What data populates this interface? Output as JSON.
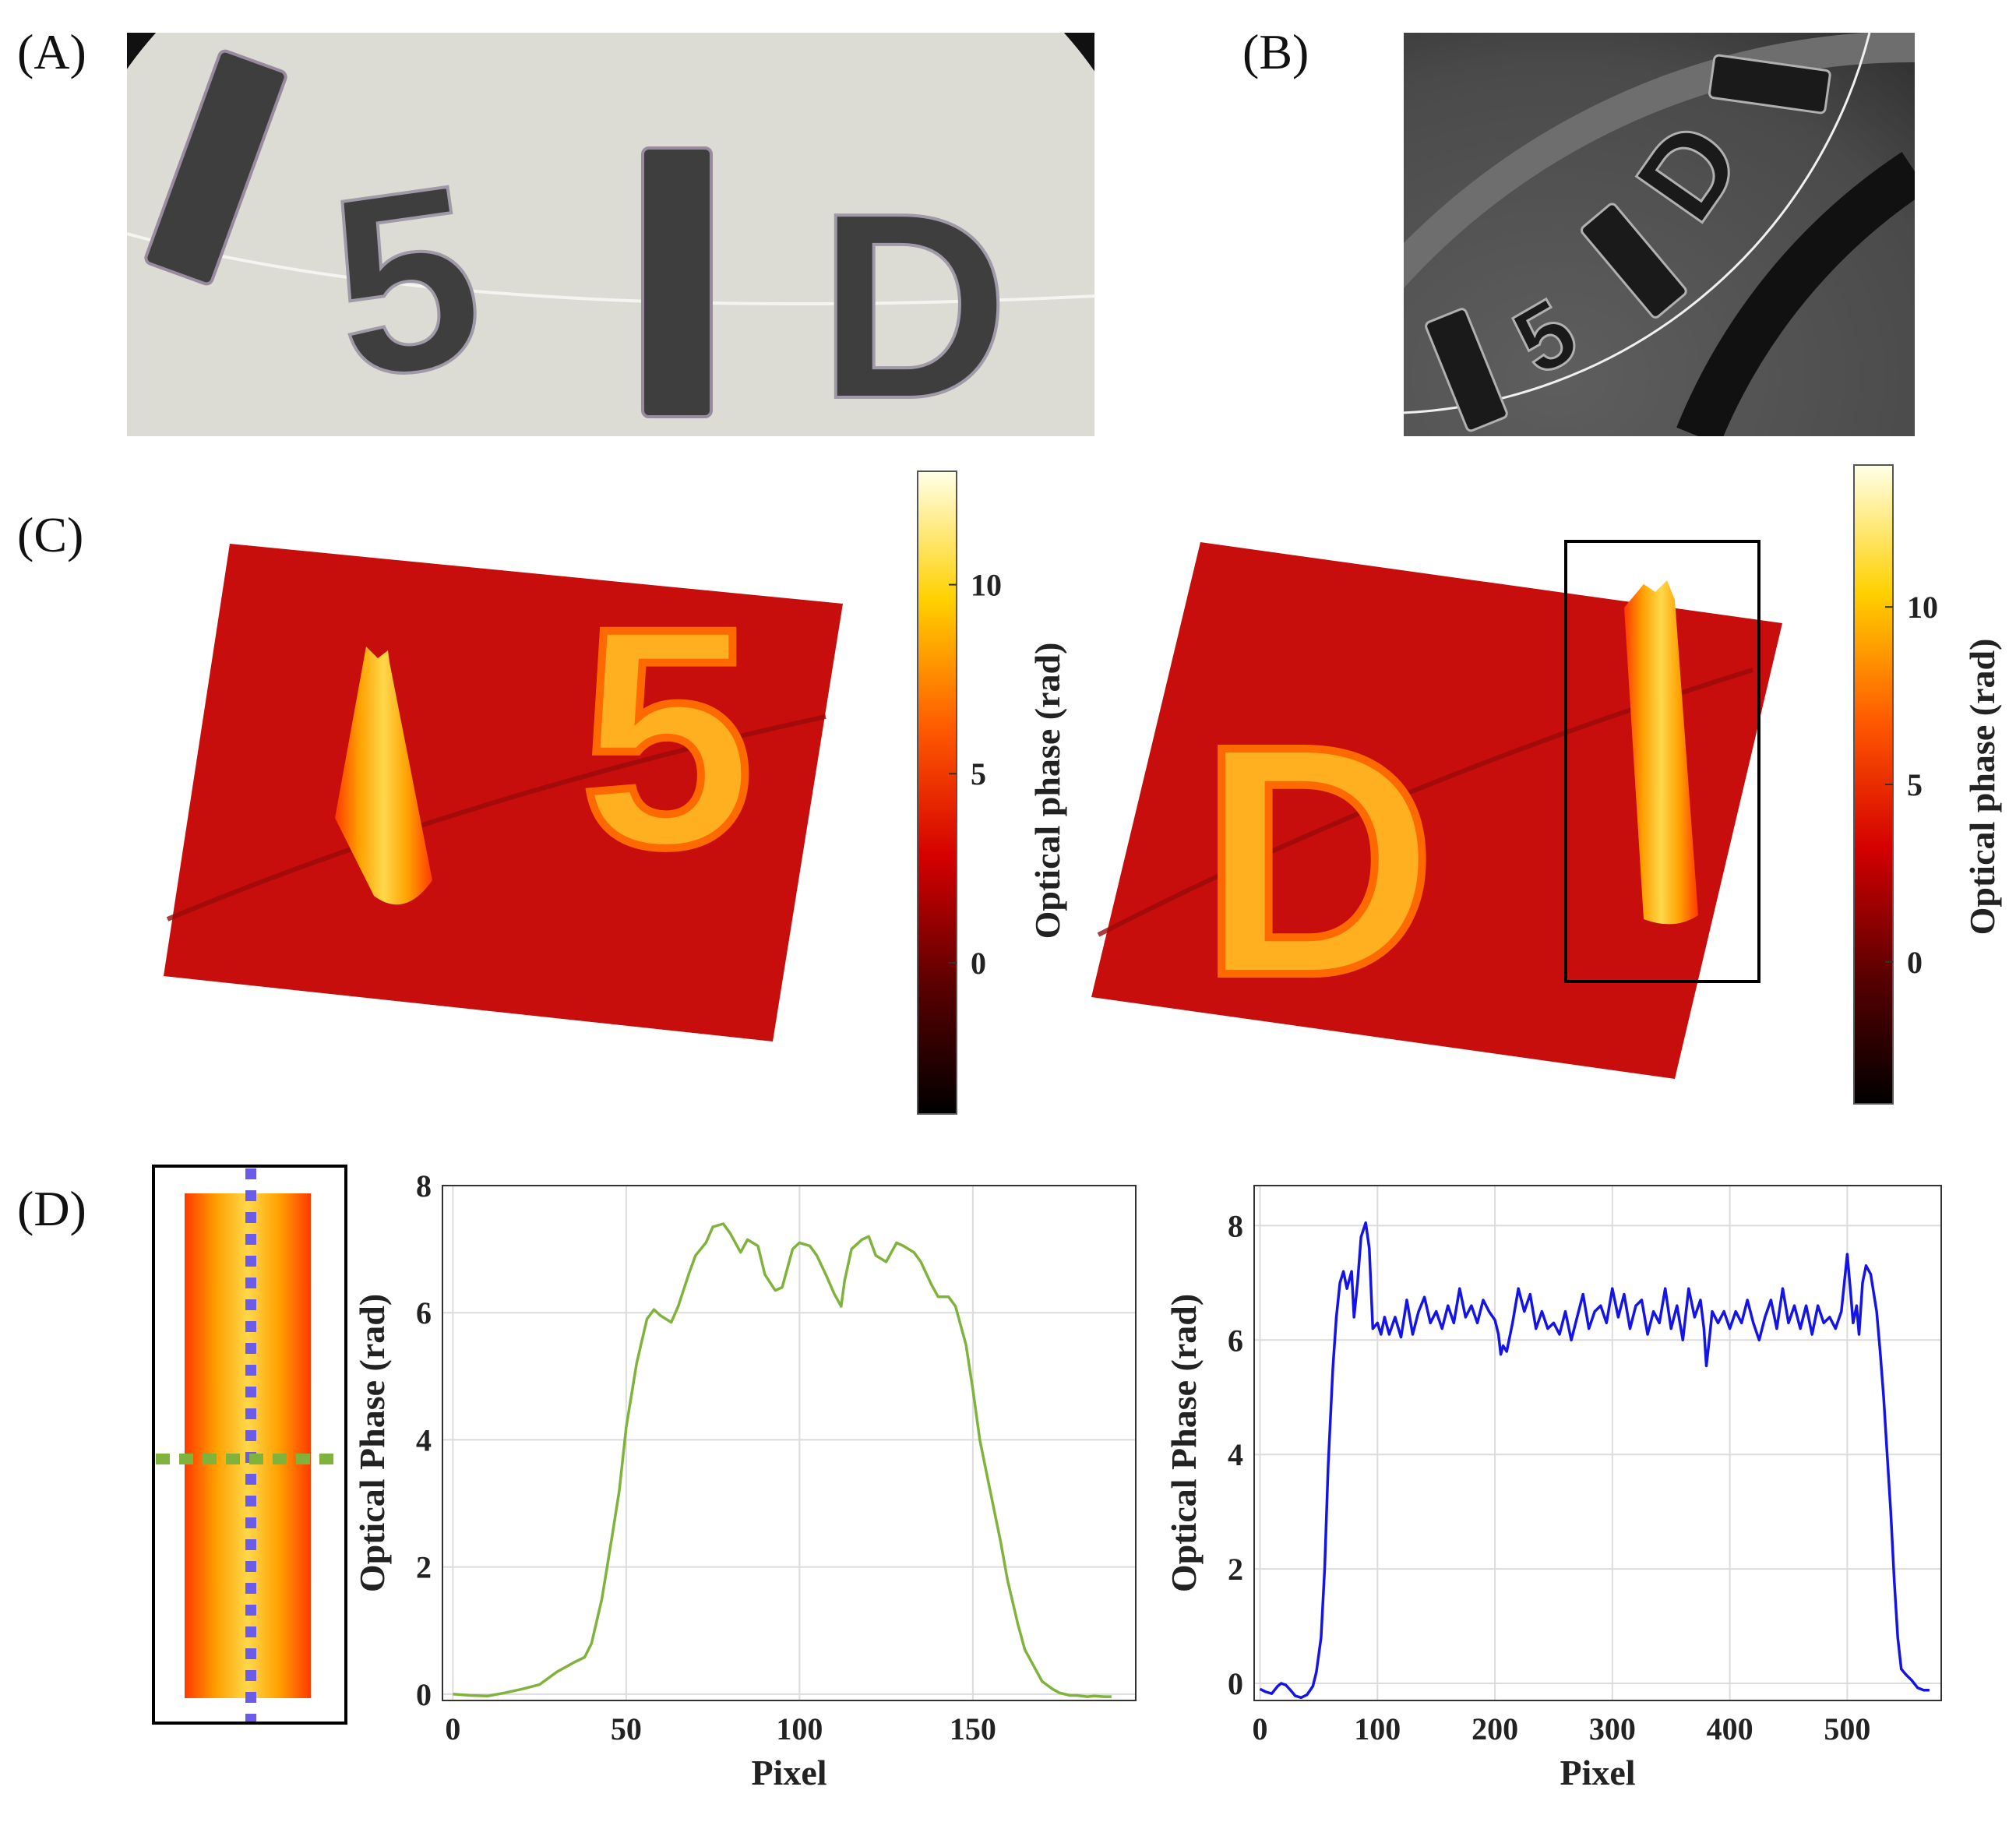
{
  "panels": {
    "a": {
      "label": "(A)",
      "text": [
        "I",
        "5",
        "I",
        "D"
      ]
    },
    "b": {
      "label": "(B)",
      "text": [
        "I",
        "5",
        "I",
        "D",
        "I"
      ]
    },
    "c": {
      "label": "(C)",
      "left_surface_text": [
        "I",
        "5"
      ],
      "right_surface_text": [
        "D",
        "I"
      ],
      "colorbar_left": {
        "label": "Optical phase (rad)",
        "ticks": [
          "10",
          "5",
          "0"
        ],
        "tick_values": [
          10,
          5,
          0
        ],
        "range": [
          -4,
          13
        ]
      },
      "colorbar_right": {
        "label": "Optical phase (rad)",
        "ticks": [
          "10",
          "5",
          "0"
        ],
        "tick_values": [
          10,
          5,
          0
        ],
        "range": [
          -4,
          14
        ]
      }
    },
    "d": {
      "label": "(D)"
    }
  },
  "colors": {
    "green_line": "#7fb33c",
    "blue_line": "#1414e6",
    "blue_dots": "#6a5ce8",
    "green_dots": "#7fb33c"
  },
  "chart_data": [
    {
      "type": "line",
      "title": "",
      "xlabel": "Pixel",
      "ylabel": "Optical Phase (rad)",
      "xlim": [
        -3,
        197
      ],
      "ylim": [
        -0.1,
        8
      ],
      "xticks": [
        0,
        50,
        100,
        150
      ],
      "yticks": [
        0,
        2,
        4,
        6,
        8
      ],
      "grid": true,
      "series": [
        {
          "name": "green",
          "color": "#7fb33c",
          "x": [
            0,
            5,
            10,
            15,
            20,
            25,
            30,
            35,
            38,
            40,
            43,
            46,
            48,
            50,
            53,
            56,
            58,
            60,
            63,
            65,
            68,
            70,
            73,
            75,
            78,
            80,
            83,
            85,
            88,
            90,
            93,
            95,
            98,
            100,
            103,
            105,
            108,
            110,
            112,
            113,
            115,
            118,
            120,
            122,
            125,
            128,
            130,
            133,
            135,
            138,
            140,
            143,
            145,
            148,
            150,
            152,
            155,
            158,
            160,
            163,
            165,
            168,
            170,
            173,
            175,
            178,
            180,
            183,
            185,
            188,
            190
          ],
          "y": [
            0,
            -0.02,
            -0.03,
            0.02,
            0.08,
            0.15,
            0.35,
            0.5,
            0.58,
            0.8,
            1.5,
            2.5,
            3.2,
            4.2,
            5.2,
            5.9,
            6.05,
            5.95,
            5.85,
            6.1,
            6.6,
            6.9,
            7.1,
            7.35,
            7.4,
            7.25,
            6.95,
            7.15,
            7.05,
            6.6,
            6.35,
            6.4,
            7.0,
            7.1,
            7.05,
            6.9,
            6.55,
            6.3,
            6.1,
            6.5,
            7.0,
            7.15,
            7.2,
            6.9,
            6.8,
            7.1,
            7.05,
            6.95,
            6.8,
            6.45,
            6.25,
            6.25,
            6.1,
            5.5,
            4.8,
            4.0,
            3.2,
            2.4,
            1.8,
            1.1,
            0.7,
            0.4,
            0.2,
            0.08,
            0.02,
            -0.02,
            -0.02,
            -0.04,
            -0.03,
            -0.04,
            -0.04
          ]
        }
      ]
    },
    {
      "type": "line",
      "title": "",
      "xlabel": "Pixel",
      "ylabel": "Optical Phase (rad)",
      "xlim": [
        -5,
        580
      ],
      "ylim": [
        -0.3,
        8.7
      ],
      "xticks": [
        0,
        100,
        200,
        300,
        400,
        500
      ],
      "yticks": [
        0,
        2,
        4,
        6,
        8
      ],
      "grid": true,
      "series": [
        {
          "name": "blue",
          "color": "#1414e6",
          "x": [
            0,
            5,
            10,
            15,
            18,
            22,
            26,
            30,
            35,
            40,
            45,
            48,
            52,
            55,
            58,
            62,
            65,
            68,
            71,
            74,
            78,
            80,
            83,
            86,
            90,
            93,
            96,
            100,
            103,
            106,
            110,
            115,
            120,
            125,
            130,
            135,
            140,
            145,
            150,
            155,
            160,
            165,
            170,
            175,
            180,
            185,
            190,
            195,
            200,
            203,
            205,
            207,
            210,
            215,
            220,
            225,
            230,
            235,
            240,
            245,
            250,
            255,
            260,
            265,
            270,
            275,
            280,
            285,
            290,
            295,
            300,
            305,
            310,
            315,
            320,
            325,
            330,
            335,
            340,
            345,
            350,
            355,
            360,
            365,
            370,
            375,
            378,
            380,
            383,
            385,
            390,
            395,
            400,
            405,
            410,
            415,
            420,
            425,
            430,
            435,
            440,
            445,
            450,
            455,
            460,
            465,
            470,
            475,
            480,
            485,
            490,
            495,
            500,
            503,
            505,
            508,
            510,
            513,
            516,
            520,
            525,
            528,
            531,
            534,
            537,
            540,
            543,
            546,
            550,
            555,
            560,
            565,
            570
          ],
          "y": [
            -0.1,
            -0.15,
            -0.18,
            -0.05,
            0.0,
            -0.03,
            -0.12,
            -0.22,
            -0.25,
            -0.2,
            -0.05,
            0.2,
            0.8,
            2.0,
            3.8,
            5.5,
            6.4,
            7.0,
            7.2,
            6.9,
            7.2,
            6.4,
            7.0,
            7.8,
            8.05,
            7.6,
            6.2,
            6.3,
            6.1,
            6.4,
            6.1,
            6.4,
            6.05,
            6.7,
            6.1,
            6.5,
            6.75,
            6.3,
            6.5,
            6.2,
            6.6,
            6.3,
            6.9,
            6.4,
            6.6,
            6.3,
            6.7,
            6.5,
            6.35,
            6.1,
            5.75,
            5.9,
            5.8,
            6.3,
            6.9,
            6.5,
            6.8,
            6.2,
            6.5,
            6.2,
            6.3,
            6.1,
            6.5,
            6.0,
            6.4,
            6.8,
            6.2,
            6.5,
            6.6,
            6.3,
            6.9,
            6.4,
            6.8,
            6.2,
            6.6,
            6.7,
            6.1,
            6.5,
            6.3,
            6.9,
            6.2,
            6.6,
            6.0,
            6.9,
            6.4,
            6.7,
            6.2,
            5.55,
            6.1,
            6.5,
            6.3,
            6.5,
            6.2,
            6.5,
            6.3,
            6.7,
            6.3,
            6.0,
            6.4,
            6.7,
            6.2,
            6.9,
            6.3,
            6.6,
            6.2,
            6.6,
            6.1,
            6.6,
            6.3,
            6.4,
            6.2,
            6.5,
            7.5,
            6.8,
            6.3,
            6.6,
            6.1,
            7.0,
            7.3,
            7.15,
            6.5,
            5.8,
            5.0,
            4.0,
            3.0,
            1.8,
            0.8,
            0.25,
            0.15,
            0.05,
            -0.08,
            -0.12,
            -0.12
          ]
        }
      ]
    }
  ]
}
